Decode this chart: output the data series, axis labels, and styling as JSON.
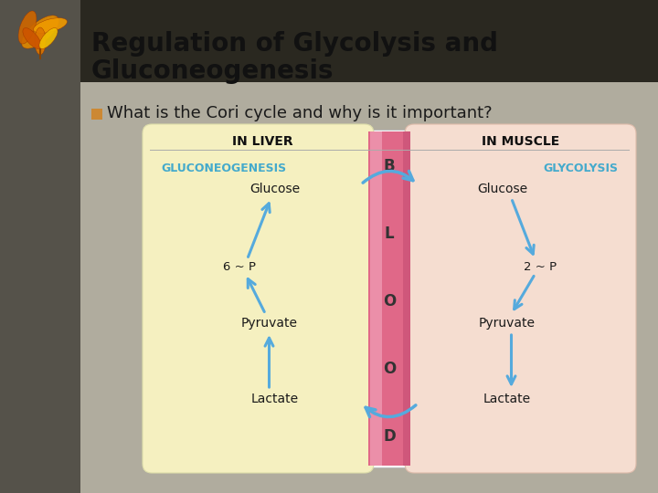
{
  "title_line1": "Regulation of Glycolysis and",
  "title_line2": "Gluconeogenesis",
  "bullet_text": "What is the Cori cycle and why is it important?",
  "bullet_color": "#cc8833",
  "slide_bg_color": "#9a9585",
  "sidebar_color": "#55524a",
  "title_bg_color": "#2a2820",
  "main_bg_color": "#b0ac9e",
  "diagram_bg_color": "#ffffff",
  "left_panel_color": "#f5f0c0",
  "right_panel_color": "#f5ddd0",
  "blood_col_color": "#e06888",
  "blood_col_highlight": "#f0a0b8",
  "blood_col_dark": "#c04870",
  "liver_label": "IN LIVER",
  "muscle_label": "IN MUSCLE",
  "left_pathway_label": "GLUCONEOGENESIS",
  "right_pathway_label": "GLYCOLYSIS",
  "blood_letters": [
    "B",
    "L",
    "O",
    "O",
    "D"
  ],
  "arrow_color": "#55aadd",
  "text_color": "#1a1a1a",
  "title_color": "#111111",
  "pathway_label_color": "#44aacc",
  "header_label_color": "#111111"
}
